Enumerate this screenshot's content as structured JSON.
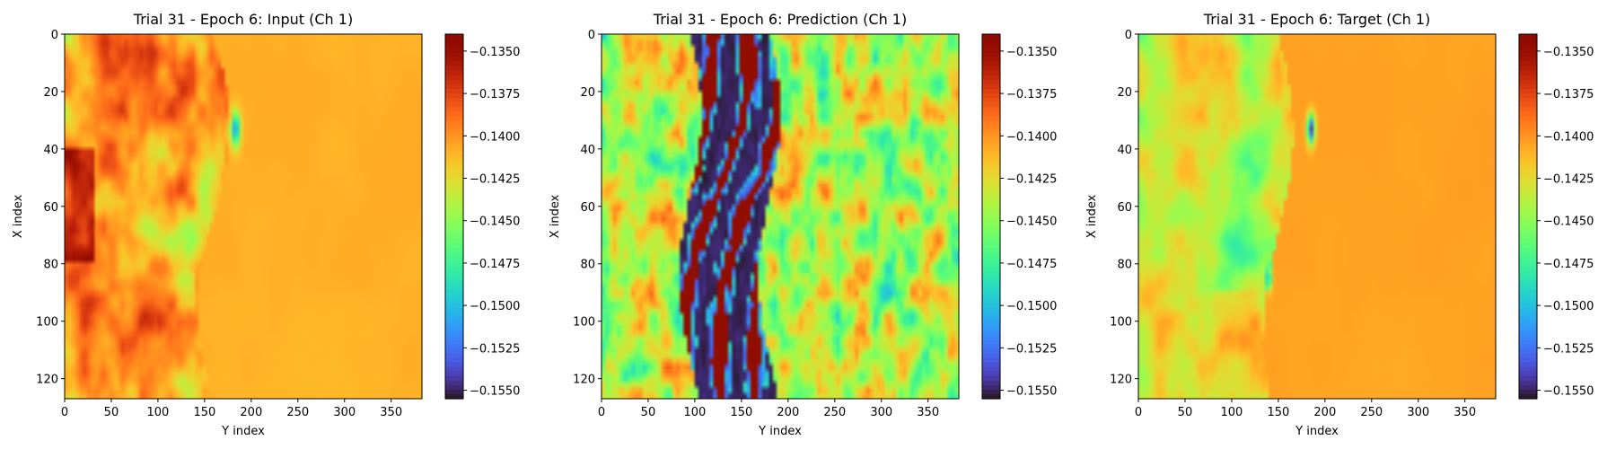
{
  "chart_data": [
    {
      "type": "heatmap",
      "panel": "input",
      "title": "Trial 31 - Epoch 6: Input (Ch 1)",
      "xlabel": "Y index",
      "ylabel": "X index",
      "xlim": [
        0,
        383
      ],
      "ylim": [
        127,
        0
      ],
      "xticks": [
        0,
        50,
        100,
        150,
        200,
        250,
        300,
        350
      ],
      "yticks": [
        0,
        20,
        40,
        60,
        80,
        100,
        120
      ],
      "colormap": "turbo",
      "vmin": -0.1555,
      "vmax": -0.134,
      "colorbar_ticks": [
        -0.135,
        -0.1375,
        -0.14,
        -0.1425,
        -0.145,
        -0.1475,
        -0.15,
        -0.1525,
        -0.155
      ],
      "colorbar_tick_labels": [
        "−0.1350",
        "−0.1375",
        "−0.1400",
        "−0.1425",
        "−0.1450",
        "−0.1475",
        "−0.1500",
        "−0.1525",
        "−0.1550"
      ],
      "field_summary": {
        "left_region_value": -0.14,
        "front_position_y": 160,
        "right_region_value": -0.141,
        "local_min_location": [
          33,
          183
        ],
        "local_min_value": -0.1515
      }
    },
    {
      "type": "heatmap",
      "panel": "prediction",
      "title": "Trial 31 - Epoch 6: Prediction (Ch 1)",
      "xlabel": "Y index",
      "ylabel": "X index",
      "xlim": [
        0,
        383
      ],
      "ylim": [
        127,
        0
      ],
      "xticks": [
        0,
        50,
        100,
        150,
        200,
        250,
        300,
        350
      ],
      "yticks": [
        0,
        20,
        40,
        60,
        80,
        100,
        120
      ],
      "colormap": "turbo",
      "vmin": -0.1555,
      "vmax": -0.134,
      "colorbar_ticks": [
        -0.135,
        -0.1375,
        -0.14,
        -0.1425,
        -0.145,
        -0.1475,
        -0.15,
        -0.1525,
        -0.155
      ],
      "colorbar_tick_labels": [
        "−0.1350",
        "−0.1375",
        "−0.1400",
        "−0.1425",
        "−0.1450",
        "−0.1475",
        "−0.1500",
        "−0.1525",
        "−0.1550"
      ],
      "field_summary": {
        "background_value": -0.144,
        "central_band_y": [
          95,
          180
        ],
        "central_band_min": -0.1555,
        "central_band_max": -0.134
      }
    },
    {
      "type": "heatmap",
      "panel": "target",
      "title": "Trial 31 - Epoch 6: Target (Ch 1)",
      "xlabel": "Y index",
      "ylabel": "X index",
      "xlim": [
        0,
        383
      ],
      "ylim": [
        127,
        0
      ],
      "xticks": [
        0,
        50,
        100,
        150,
        200,
        250,
        300,
        350
      ],
      "yticks": [
        0,
        20,
        40,
        60,
        80,
        100,
        120
      ],
      "colormap": "turbo",
      "vmin": -0.1555,
      "vmax": -0.134,
      "colorbar_ticks": [
        -0.135,
        -0.1375,
        -0.14,
        -0.1425,
        -0.145,
        -0.1475,
        -0.15,
        -0.1525,
        -0.155
      ],
      "colorbar_tick_labels": [
        "−0.1350",
        "−0.1375",
        "−0.1400",
        "−0.1425",
        "−0.1450",
        "−0.1475",
        "−0.1500",
        "−0.1525",
        "−0.1550"
      ],
      "field_summary": {
        "left_region_value": -0.143,
        "front_position_y": 150,
        "right_region_value": -0.1405,
        "local_min_location": [
          33,
          185
        ],
        "local_min_value": -0.1545
      }
    }
  ]
}
